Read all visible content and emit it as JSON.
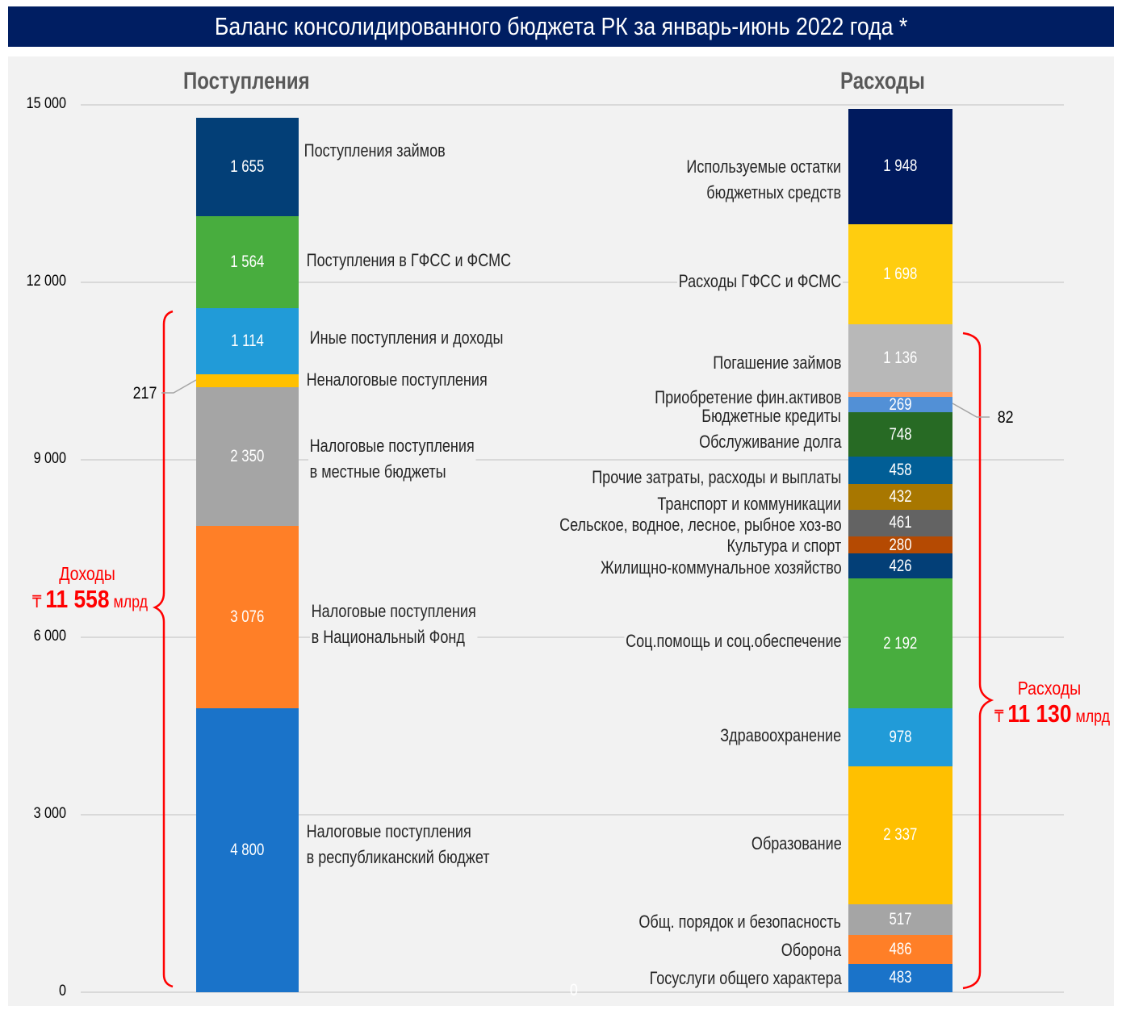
{
  "title": "Баланс консолидированного бюджета РК за январь-июнь 2022 года *",
  "columns": {
    "left": "Поступления",
    "right": "Расходы"
  },
  "y_axis": {
    "ticks": [
      "0",
      "3 000",
      "6 000",
      "9 000",
      "12 000",
      "15 000"
    ]
  },
  "bottom_zero": "0",
  "totals": {
    "income": {
      "label": "Доходы",
      "currency": "₸",
      "value": "11 558",
      "unit": "млрд"
    },
    "expense": {
      "label": "Расходы",
      "currency": "₸",
      "value": "11 130",
      "unit": "млрд"
    }
  },
  "callouts": {
    "left_small": "217",
    "right_small": "82"
  },
  "colors": {
    "title_bg": "#001e62",
    "accent_red": "#ff0000",
    "panel_bg": "#f2f2f2"
  },
  "chart_data": {
    "type": "bar",
    "stacked": true,
    "title": "Баланс консолидированного бюджета РК за январь-июнь 2022 года *",
    "categories": [
      "Поступления",
      "Расходы"
    ],
    "ylim": [
      0,
      15000
    ],
    "yticks": [
      0,
      3000,
      6000,
      9000,
      12000,
      15000
    ],
    "grid": true,
    "unit": "млрд ₸",
    "series_left": [
      {
        "name": "Налоговые поступления в республиканский бюджет",
        "value": 4800,
        "display": "4 800",
        "color": "#1a73c9"
      },
      {
        "name": "Налоговые поступления в Национальный Фонд",
        "value": 3076,
        "display": "3 076",
        "color": "#ff7f27"
      },
      {
        "name": "Налоговые поступления в местные бюджеты",
        "value": 2350,
        "display": "2 350",
        "color": "#a5a5a5"
      },
      {
        "name": "Неналоговые поступления",
        "value": 217,
        "display": "217",
        "color": "#ffc000"
      },
      {
        "name": "Иные поступления и доходы",
        "value": 1114,
        "display": "1 114",
        "color": "#219bd8"
      },
      {
        "name": "Поступления в ГФСС и ФСМС",
        "value": 1564,
        "display": "1 564",
        "color": "#48ad3e"
      },
      {
        "name": "Поступления займов",
        "value": 1655,
        "display": "1 655",
        "color": "#033f77"
      }
    ],
    "series_right": [
      {
        "name": "Госуслуги общего характера",
        "value": 483,
        "display": "483",
        "color": "#1a73c9"
      },
      {
        "name": "Оборона",
        "value": 486,
        "display": "486",
        "color": "#ff7f27"
      },
      {
        "name": "Общ. порядок и безопасность",
        "value": 517,
        "display": "517",
        "color": "#a5a5a5"
      },
      {
        "name": "Образование",
        "value": 2337,
        "display": "2 337",
        "color": "#ffc000"
      },
      {
        "name": "Здравоохранение",
        "value": 978,
        "display": "978",
        "color": "#219bd8"
      },
      {
        "name": "Соц.помощь и соц.обеспечение",
        "value": 2192,
        "display": "2 192",
        "color": "#48ad3e"
      },
      {
        "name": "Жилищно-коммунальное хозяйство",
        "value": 426,
        "display": "426",
        "color": "#033f77"
      },
      {
        "name": "Культура и спорт",
        "value": 280,
        "display": "280",
        "color": "#b54a02"
      },
      {
        "name": "Сельское, водное, лесное, рыбное хоз-во",
        "value": 461,
        "display": "461",
        "color": "#636363"
      },
      {
        "name": "Транспорт и коммуникации",
        "value": 432,
        "display": "432",
        "color": "#a87700"
      },
      {
        "name": "Прочие затраты, расходы и выплаты",
        "value": 458,
        "display": "458",
        "color": "#015e96"
      },
      {
        "name": "Обслуживание долга",
        "value": 748,
        "display": "748",
        "color": "#276a24"
      },
      {
        "name": "Бюджетные кредиты",
        "value": 269,
        "display": "269",
        "color": "#5290d6"
      },
      {
        "name": "Приобретение фин.активов",
        "value": 82,
        "display": "82",
        "color": "#ff9a5a"
      },
      {
        "name": "Погашение займов",
        "value": 1136,
        "display": "1 136",
        "color": "#b8b8b8"
      },
      {
        "name": "Расходы ГФСС и ФСМС",
        "value": 1698,
        "display": "1 698",
        "color": "#ffcd0f"
      },
      {
        "name": "Используемые остатки бюджетных средств",
        "value": 1948,
        "display": "1 948",
        "color": "#001a5e"
      }
    ],
    "annotations": [
      {
        "text": "Доходы ₸ 11 558 млрд",
        "brace": "left",
        "range": [
          0,
          11558
        ]
      },
      {
        "text": "Расходы ₸ 11 130 млрд",
        "brace": "right",
        "range": [
          0,
          11130
        ]
      }
    ]
  },
  "labels_left": [
    {
      "lines": [
        "Налоговые поступления",
        "в республиканский бюджет"
      ]
    },
    {
      "lines": [
        "Налоговые поступления",
        "в Национальный Фонд"
      ]
    },
    {
      "lines": [
        "Налоговые поступления",
        "в местные бюджеты"
      ]
    },
    {
      "lines": [
        "Неналоговые поступления"
      ]
    },
    {
      "lines": [
        "Иные поступления и доходы"
      ]
    },
    {
      "lines": [
        "Поступления в ГФСС и ФСМС"
      ]
    },
    {
      "lines": [
        "Поступления займов"
      ]
    }
  ]
}
